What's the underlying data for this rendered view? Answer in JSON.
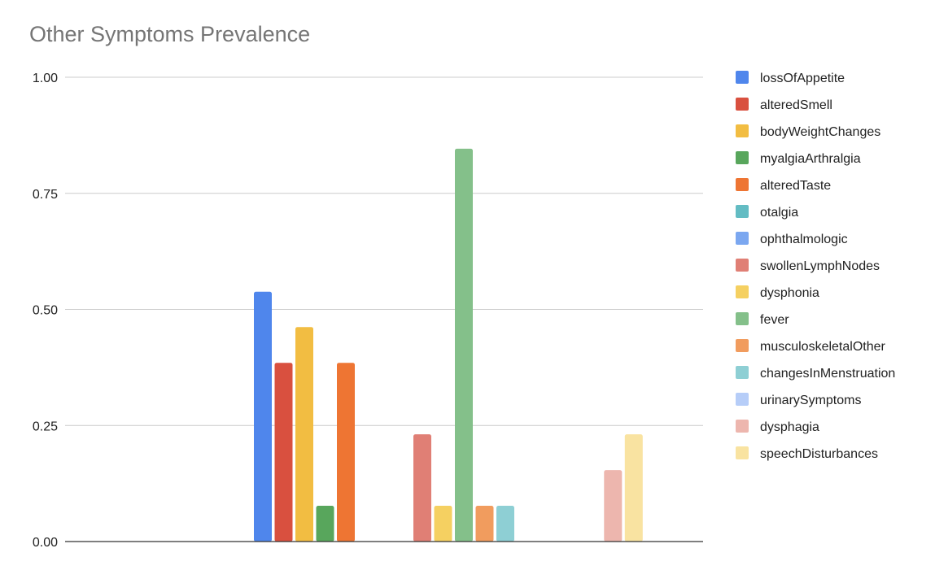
{
  "chart_data": {
    "type": "bar",
    "title": "Other Symptoms Prevalence",
    "xlabel": "",
    "ylabel": "",
    "ylim": [
      0,
      1
    ],
    "yticks": [
      "0.00",
      "0.25",
      "0.50",
      "0.75",
      "1.00"
    ],
    "ytick_values": [
      0,
      0.25,
      0.5,
      0.75,
      1.0
    ],
    "grid": true,
    "legend_position": "right",
    "groups": [
      "",
      "",
      "",
      ""
    ],
    "series": [
      {
        "name": "lossOfAppetite",
        "color": "#4f86ec",
        "values": [
          null,
          0.538,
          null,
          null
        ]
      },
      {
        "name": "alteredSmell",
        "color": "#d9503f",
        "values": [
          null,
          0.385,
          null,
          null
        ]
      },
      {
        "name": "bodyWeightChanges",
        "color": "#f2bd42",
        "values": [
          null,
          0.462,
          null,
          null
        ]
      },
      {
        "name": "myalgiaArthralgia",
        "color": "#58a65c",
        "values": [
          null,
          0.077,
          null,
          null
        ]
      },
      {
        "name": "alteredTaste",
        "color": "#ee7533",
        "values": [
          null,
          0.385,
          null,
          null
        ]
      },
      {
        "name": "otalgia",
        "color": "#63bcc3",
        "values": [
          null,
          null,
          null,
          null
        ]
      },
      {
        "name": "ophthalmologic",
        "color": "#7ba7f0",
        "values": [
          null,
          null,
          null,
          null
        ]
      },
      {
        "name": "swollenLymphNodes",
        "color": "#e07f75",
        "values": [
          null,
          null,
          0.231,
          null
        ]
      },
      {
        "name": "dysphonia",
        "color": "#f5d061",
        "values": [
          null,
          null,
          0.077,
          null
        ]
      },
      {
        "name": "fever",
        "color": "#84c08a",
        "values": [
          null,
          null,
          0.846,
          null
        ]
      },
      {
        "name": "musculoskeletalOther",
        "color": "#f19c5e",
        "values": [
          null,
          null,
          0.077,
          null
        ]
      },
      {
        "name": "changesInMenstruation",
        "color": "#8ecfd4",
        "values": [
          null,
          null,
          0.077,
          null
        ]
      },
      {
        "name": "urinarySymptoms",
        "color": "#b6cdf8",
        "values": [
          null,
          null,
          null,
          null
        ]
      },
      {
        "name": "dysphagia",
        "color": "#edb6ae",
        "values": [
          null,
          null,
          null,
          0.154
        ]
      },
      {
        "name": "speechDisturbances",
        "color": "#f9e3a1",
        "values": [
          null,
          null,
          null,
          0.231
        ]
      }
    ]
  }
}
